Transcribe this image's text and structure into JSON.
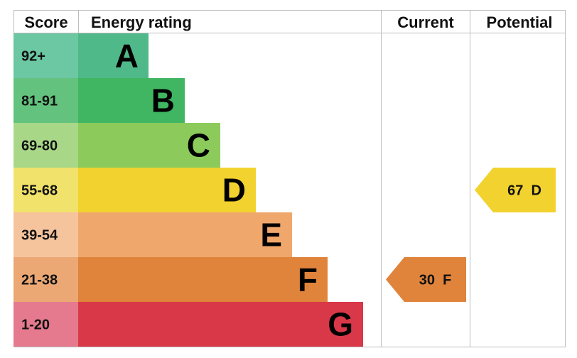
{
  "headers": {
    "score": "Score",
    "rating": "Energy rating",
    "current": "Current",
    "potential": "Potential"
  },
  "chart_data": {
    "type": "bar",
    "bands": [
      {
        "score": "92+",
        "letter": "A",
        "score_color": "#6cc7a3",
        "bar_color": "#4fb98a"
      },
      {
        "score": "81-91",
        "letter": "B",
        "score_color": "#63c27e",
        "bar_color": "#40b562"
      },
      {
        "score": "69-80",
        "letter": "C",
        "score_color": "#a8d887",
        "bar_color": "#8ccb5b"
      },
      {
        "score": "55-68",
        "letter": "D",
        "score_color": "#f1e26b",
        "bar_color": "#f2d22e"
      },
      {
        "score": "39-54",
        "letter": "E",
        "score_color": "#f5c49d",
        "bar_color": "#f0a76b"
      },
      {
        "score": "21-38",
        "letter": "F",
        "score_color": "#eba874",
        "bar_color": "#e0833b"
      },
      {
        "score": "1-20",
        "letter": "G",
        "score_color": "#e57a8e",
        "bar_color": "#d93848"
      }
    ],
    "current": {
      "value": 30,
      "band": "F",
      "label": "30  F",
      "color": "#e0833b"
    },
    "potential": {
      "value": 67,
      "band": "D",
      "label": "67  D",
      "color": "#f2d22e"
    }
  }
}
